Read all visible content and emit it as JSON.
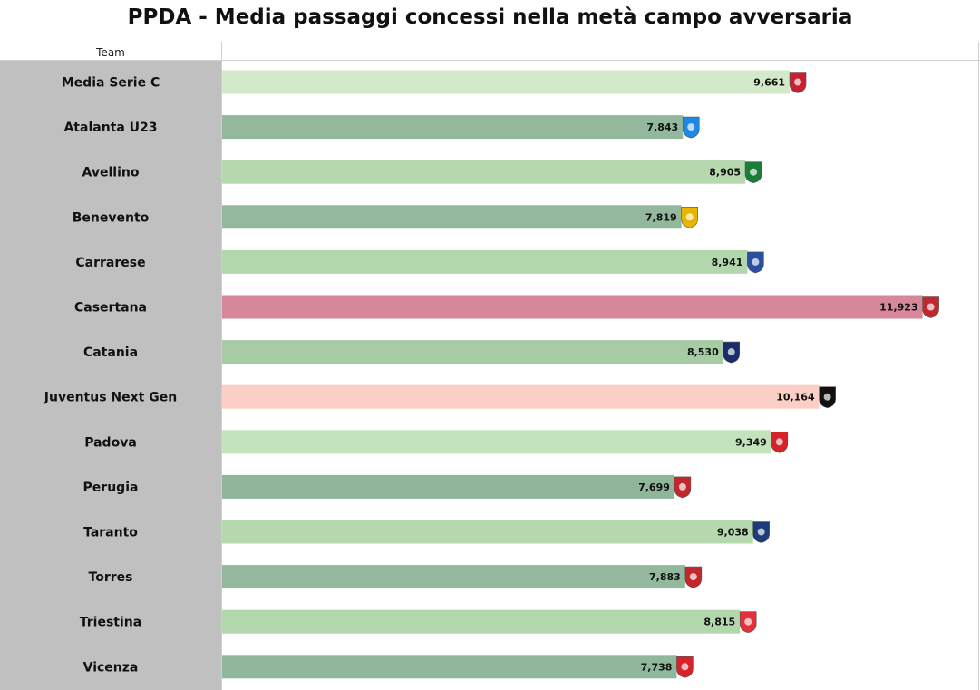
{
  "chart_data": {
    "type": "bar",
    "orientation": "horizontal",
    "title": "PPDA - Media passaggi concessi nella metà campo avversaria",
    "column_header": "Team",
    "categories": [
      "Media Serie C",
      "Atalanta U23",
      "Avellino",
      "Benevento",
      "Carrarese",
      "Casertana",
      "Catania",
      "Juventus Next Gen",
      "Padova",
      "Perugia",
      "Taranto",
      "Torres",
      "Triestina",
      "Vicenza"
    ],
    "values": [
      9.661,
      7.843,
      8.905,
      7.819,
      8.941,
      11.923,
      8.53,
      10.164,
      9.349,
      7.699,
      9.038,
      7.883,
      8.815,
      7.738
    ],
    "value_labels": [
      "9,661",
      "7,843",
      "8,905",
      "7,819",
      "8,941",
      "11,923",
      "8,530",
      "10,164",
      "9,349",
      "7,699",
      "9,038",
      "7,883",
      "8,815",
      "7,738"
    ],
    "colors": [
      "#d2eaca",
      "#93b89d",
      "#b5d8ae",
      "#93b89d",
      "#b3d7ad",
      "#d6879a",
      "#a6cba5",
      "#fbcec6",
      "#c3e3bd",
      "#8fb59a",
      "#b5d8ae",
      "#93b89d",
      "#b3d7ad",
      "#90b69b"
    ],
    "logo_icons": [
      "serie-c-logo",
      "atalanta-logo",
      "avellino-logo",
      "benevento-logo",
      "carrarese-logo",
      "casertana-logo",
      "catania-logo",
      "juventus-logo",
      "padova-logo",
      "perugia-logo",
      "taranto-logo",
      "torres-logo",
      "triestina-logo",
      "vicenza-logo"
    ],
    "logo_colors": [
      "#c8202f",
      "#1e88e5",
      "#1a7d3a",
      "#e8b400",
      "#2a4fa0",
      "#c0282d",
      "#1a2c6b",
      "#111111",
      "#d8222b",
      "#c0282d",
      "#1d3a7a",
      "#c0282d",
      "#e5303a",
      "#d8222b"
    ],
    "xlim": [
      0,
      12.5
    ],
    "grid": false,
    "legend": "none"
  }
}
